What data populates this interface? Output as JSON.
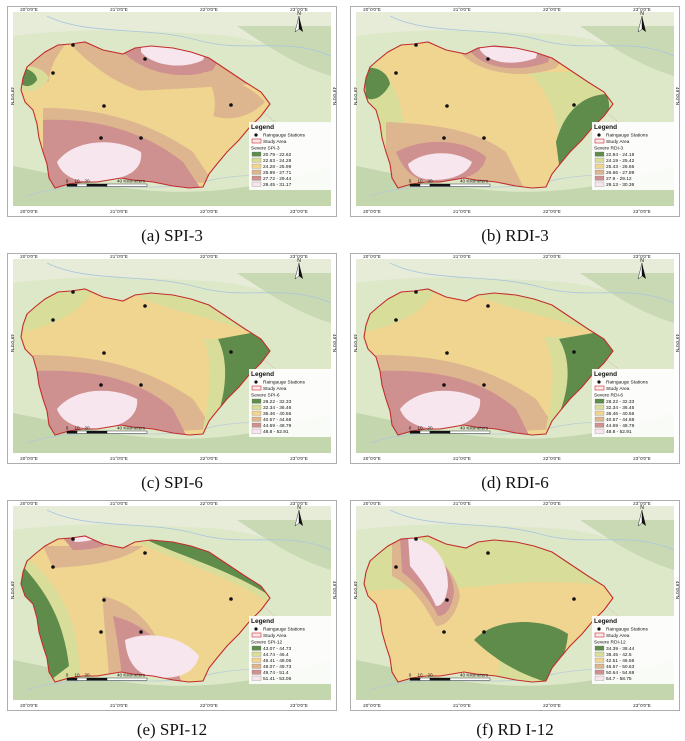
{
  "figure": {
    "x_ticks": [
      "20°0'0\"E",
      "21°0'0\"E",
      "22°0'0\"E",
      "23°0'0\"E"
    ],
    "y_tick": "49°0'0\"N",
    "north": "N",
    "legend_title": "Legend",
    "legend_station": "Raingauge Stations",
    "legend_area": "Study Area",
    "scale_labels": [
      "0",
      "10",
      "20",
      "40 Kilometers"
    ],
    "station_color": "#111111",
    "boundary_color": "#c22d2d",
    "class_colors": [
      "#5f8c4a",
      "#d9dd9a",
      "#f0d591",
      "#ddb58e",
      "#cf9090",
      "#f7e6ee"
    ]
  },
  "panels": [
    {
      "caption": "(a) SPI-3",
      "legend_var": "Severe SPI-3",
      "classes": [
        "20.79 - 22.62",
        "22.63 - 24.28",
        "24.28 - 25.99",
        "25.99 - 27.71",
        "27.72 - 29.44",
        "29.45 - 31.17"
      ]
    },
    {
      "caption": "(b) RDI-3",
      "legend_var": "Severe RDI-3",
      "classes": [
        "22.94 - 24.18",
        "24.19 - 25.42",
        "25.43 - 26.66",
        "26.66 - 27.89",
        "27.9 - 29.12",
        "29.13 - 30.36"
      ]
    },
    {
      "caption": "(c) SPI-6",
      "legend_var": "Severe SPI-6",
      "classes": [
        "28.22 - 32.33",
        "32.34 - 36.46",
        "36.46 - 40.56",
        "40.57 - 44.68",
        "44.69 - 48.79",
        "48.8 - 52.91"
      ]
    },
    {
      "caption": "(d) RDI-6",
      "legend_var": "Severe RDI-6",
      "classes": [
        "28.22 - 32.33",
        "32.34 - 36.46",
        "36.46 - 40.56",
        "40.57 - 44.68",
        "44.69 - 48.79",
        "48.8 - 52.91"
      ]
    },
    {
      "caption": "(e) SPI-12",
      "legend_var": "Severe SPI-12",
      "classes": [
        "43.07 - 44.73",
        "44.74 - 46.4",
        "46.41 - 48.06",
        "48.07 - 49.73",
        "49.74 - 51.4",
        "51.41 - 53.06"
      ]
    },
    {
      "caption": "(f) RD I-12",
      "legend_var": "Severe RDI-12",
      "classes": [
        "34.39 - 38.44",
        "38.45 - 42.5",
        "42.51 - 46.56",
        "46.57 - 50.63",
        "50.64 - 54.69",
        "54.7 - 58.75"
      ]
    }
  ]
}
